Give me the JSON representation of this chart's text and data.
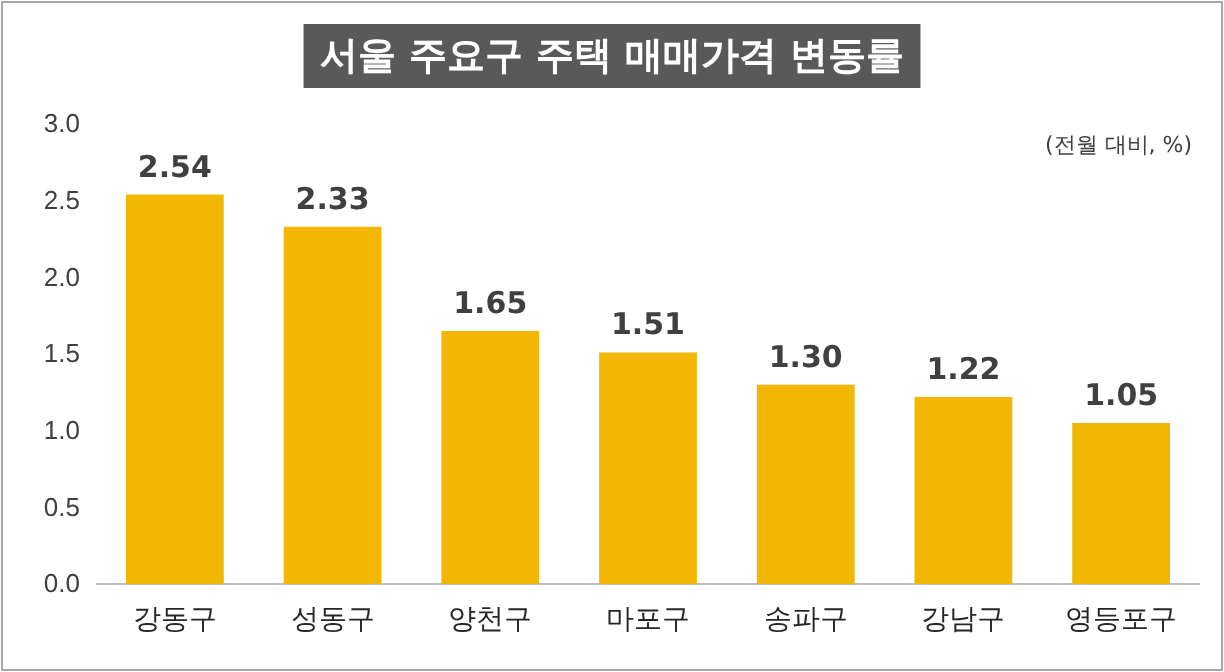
{
  "chart_data": {
    "type": "bar",
    "title": "서울 주요구 주택 매매가격 변동률",
    "annotations": [
      "(전월 대비, %)"
    ],
    "categories": [
      "강동구",
      "성동구",
      "양천구",
      "마포구",
      "송파구",
      "강남구",
      "영등포구"
    ],
    "values": [
      2.54,
      2.33,
      1.65,
      1.51,
      1.3,
      1.22,
      1.05
    ],
    "value_labels": [
      "2.54",
      "2.33",
      "1.65",
      "1.51",
      "1.30",
      "1.22",
      "1.05"
    ],
    "color": "#f2b705",
    "ylim": [
      0,
      3
    ],
    "yticks": [
      {
        "value": 0,
        "label": "0.0"
      },
      {
        "value": 0.5,
        "label": "0.5"
      },
      {
        "value": 1,
        "label": "1.0"
      },
      {
        "value": 1.5,
        "label": "1.5"
      },
      {
        "value": 2,
        "label": "2.0"
      },
      {
        "value": 2.5,
        "label": "2.5"
      },
      {
        "value": 3,
        "label": "3.0"
      }
    ],
    "grid": false
  }
}
